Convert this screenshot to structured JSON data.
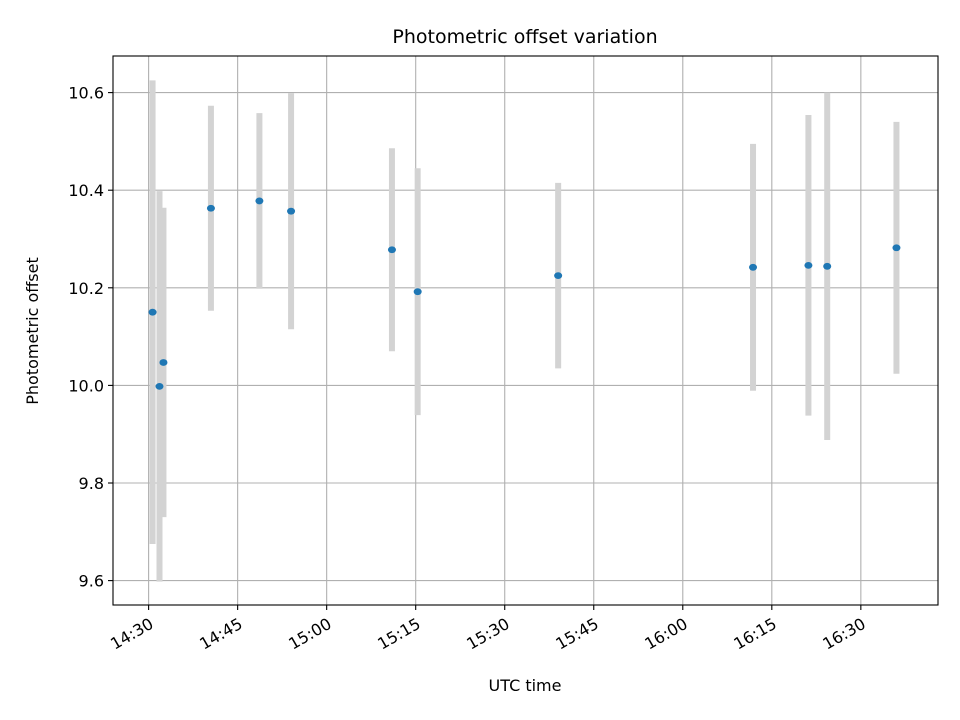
{
  "chart_data": {
    "type": "scatter",
    "title": "Photometric offset variation",
    "xlabel": "UTC time",
    "ylabel": "Photometric offset",
    "xlim": [
      "14:24",
      "16:43"
    ],
    "ylim": [
      9.55,
      10.675
    ],
    "x_ticks": [
      "14:30",
      "14:45",
      "15:00",
      "15:15",
      "15:30",
      "15:45",
      "16:00",
      "16:15",
      "16:30"
    ],
    "y_ticks": [
      9.6,
      9.8,
      10.0,
      10.2,
      10.4,
      10.6
    ],
    "grid": true,
    "point_color": "#1f77b4",
    "errorbar_color": "#d3d3d3",
    "points": [
      {
        "x": "14:30:40",
        "y": 10.15,
        "err": 0.475
      },
      {
        "x": "14:31:50",
        "y": 9.998,
        "err": 0.4
      },
      {
        "x": "14:32:30",
        "y": 10.047,
        "err": 0.317
      },
      {
        "x": "14:40:30",
        "y": 10.363,
        "err": 0.21
      },
      {
        "x": "14:48:40",
        "y": 10.378,
        "err": 0.18
      },
      {
        "x": "14:54:00",
        "y": 10.357,
        "err": 0.242
      },
      {
        "x": "15:11:00",
        "y": 10.278,
        "err": 0.208
      },
      {
        "x": "15:15:20",
        "y": 10.192,
        "err": 0.253
      },
      {
        "x": "15:39:00",
        "y": 10.225,
        "err": 0.19
      },
      {
        "x": "16:11:50",
        "y": 10.242,
        "err": 0.253
      },
      {
        "x": "16:21:10",
        "y": 10.246,
        "err": 0.308
      },
      {
        "x": "16:24:20",
        "y": 10.244,
        "err": 0.356
      },
      {
        "x": "16:36:00",
        "y": 10.282,
        "err": 0.258
      }
    ]
  }
}
